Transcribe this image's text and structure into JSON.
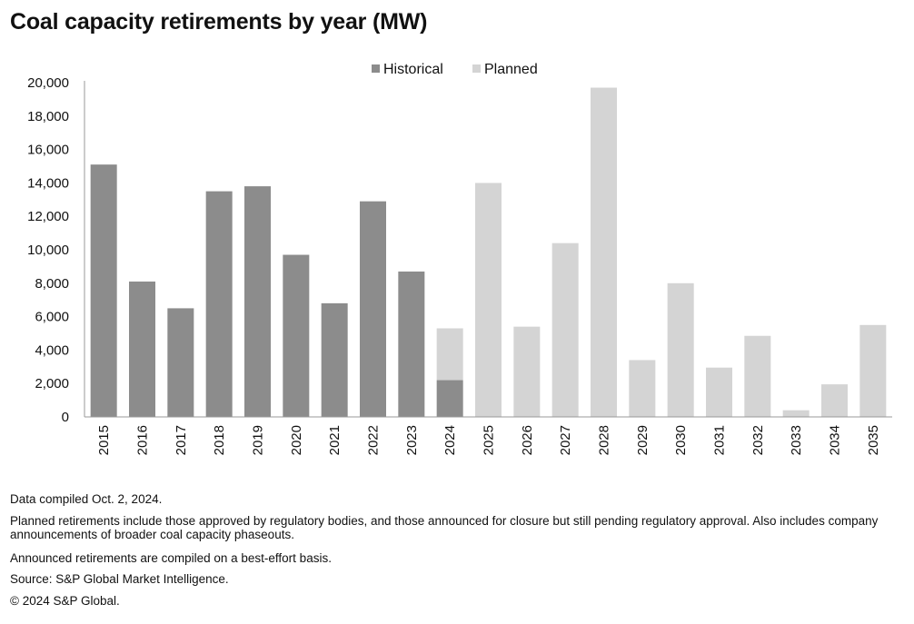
{
  "title": "Coal capacity retirements by year (MW)",
  "notes": [
    "Data compiled Oct. 2, 2024.",
    "Planned retirements include those approved by regulatory bodies, and those announced for closure but still pending regulatory approval. Also includes company announcements of broader coal capacity phaseouts.",
    "Announced retirements are compiled on a best-effort basis.",
    "Source: S&P Global Market Intelligence.",
    "© 2024 S&P Global."
  ],
  "chart_data": {
    "type": "bar",
    "stacked": true,
    "title": "Coal capacity retirements by year (MW)",
    "categories": [
      "2015",
      "2016",
      "2017",
      "2018",
      "2019",
      "2020",
      "2021",
      "2022",
      "2023",
      "2024",
      "2025",
      "2026",
      "2027",
      "2028",
      "2029",
      "2030",
      "2031",
      "2032",
      "2033",
      "2034",
      "2035"
    ],
    "series": [
      {
        "name": "Historical",
        "color": "#8c8c8c",
        "values": [
          15100,
          8100,
          6500,
          13500,
          13800,
          9700,
          6800,
          12900,
          8700,
          2200,
          0,
          0,
          0,
          0,
          0,
          0,
          0,
          0,
          0,
          0,
          0
        ]
      },
      {
        "name": "Planned",
        "color": "#d4d4d4",
        "values": [
          0,
          0,
          0,
          0,
          0,
          0,
          0,
          0,
          0,
          3100,
          14000,
          5400,
          10400,
          19700,
          3400,
          8000,
          2950,
          4850,
          400,
          1950,
          5500
        ]
      }
    ],
    "yticks": [
      "0",
      "2,000",
      "4,000",
      "6,000",
      "8,000",
      "10,000",
      "12,000",
      "14,000",
      "16,000",
      "18,000",
      "20,000"
    ],
    "ylim": [
      0,
      20000
    ],
    "legend_position": "top-center",
    "grid": false
  }
}
